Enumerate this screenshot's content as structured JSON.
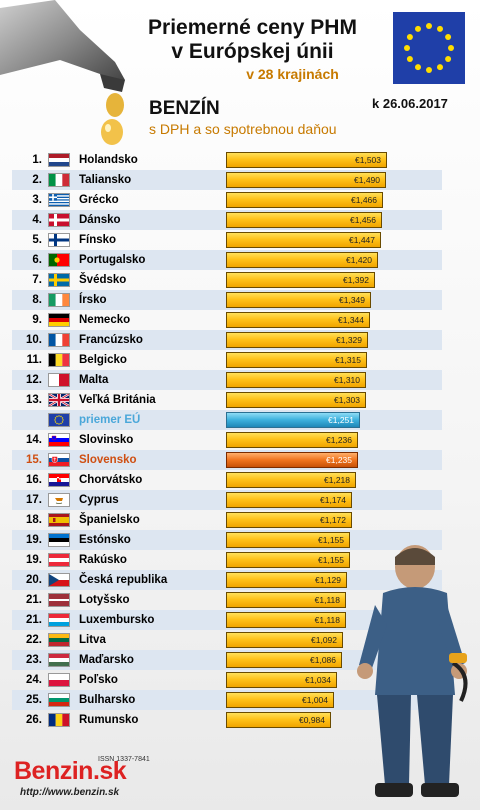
{
  "header": {
    "title_line1": "Priemerné ceny PHM",
    "title_line2": "v Európskej únii",
    "title_line3": "v 28 krajinách",
    "date": "k 26.06.2017",
    "heading": "BENZÍN",
    "subheading": "s DPH a so spotrebnou daňou"
  },
  "footer": {
    "issn": "ISSN 1337-7841",
    "logo": "Benzin.sk",
    "url": "http://www.benzin.sk"
  },
  "colors": {
    "bar": "#ffc21a",
    "eu_bar": "#3bb0dd",
    "highlight_bar": "#f0741e",
    "highlight_text": "#cf4f12",
    "eu_text": "#4aa7d9",
    "row_alt": "#dde6f1"
  },
  "chart_data": {
    "type": "bar",
    "orientation": "horizontal",
    "title": "Priemerné ceny PHM v Európskej únii",
    "unit": "€",
    "rows": [
      {
        "rank": "1.",
        "country": "Holandsko",
        "value": 1.503,
        "label": "€1,503",
        "flag": "nl"
      },
      {
        "rank": "2.",
        "country": "Taliansko",
        "value": 1.49,
        "label": "€1,490",
        "flag": "it"
      },
      {
        "rank": "3.",
        "country": "Grécko",
        "value": 1.466,
        "label": "€1,466",
        "flag": "gr"
      },
      {
        "rank": "4.",
        "country": "Dánsko",
        "value": 1.456,
        "label": "€1,456",
        "flag": "dk"
      },
      {
        "rank": "5.",
        "country": "Fínsko",
        "value": 1.447,
        "label": "€1,447",
        "flag": "fi"
      },
      {
        "rank": "6.",
        "country": "Portugalsko",
        "value": 1.42,
        "label": "€1,420",
        "flag": "pt"
      },
      {
        "rank": "7.",
        "country": "Švédsko",
        "value": 1.392,
        "label": "€1,392",
        "flag": "se"
      },
      {
        "rank": "8.",
        "country": "Írsko",
        "value": 1.349,
        "label": "€1,349",
        "flag": "ie"
      },
      {
        "rank": "9.",
        "country": "Nemecko",
        "value": 1.344,
        "label": "€1,344",
        "flag": "de"
      },
      {
        "rank": "10.",
        "country": "Francúzsko",
        "value": 1.329,
        "label": "€1,329",
        "flag": "fr"
      },
      {
        "rank": "11.",
        "country": "Belgicko",
        "value": 1.315,
        "label": "€1,315",
        "flag": "be"
      },
      {
        "rank": "12.",
        "country": "Malta",
        "value": 1.31,
        "label": "€1,310",
        "flag": "mt"
      },
      {
        "rank": "13.",
        "country": "Veľká Británia",
        "value": 1.303,
        "label": "€1,303",
        "flag": "gb"
      },
      {
        "rank": "",
        "country": "priemer EÚ",
        "value": 1.251,
        "label": "€1,251",
        "flag": "eu",
        "kind": "eu"
      },
      {
        "rank": "14.",
        "country": "Slovinsko",
        "value": 1.236,
        "label": "€1,236",
        "flag": "si"
      },
      {
        "rank": "15.",
        "country": "Slovensko",
        "value": 1.235,
        "label": "€1,235",
        "flag": "sk",
        "kind": "hl"
      },
      {
        "rank": "16.",
        "country": "Chorvátsko",
        "value": 1.218,
        "label": "€1,218",
        "flag": "hr"
      },
      {
        "rank": "17.",
        "country": "Cyprus",
        "value": 1.174,
        "label": "€1,174",
        "flag": "cy"
      },
      {
        "rank": "18.",
        "country": "Španielsko",
        "value": 1.172,
        "label": "€1,172",
        "flag": "es"
      },
      {
        "rank": "19.",
        "country": "Estónsko",
        "value": 1.155,
        "label": "€1,155",
        "flag": "ee"
      },
      {
        "rank": "19.",
        "country": "Rakúsko",
        "value": 1.155,
        "label": "€1,155",
        "flag": "at"
      },
      {
        "rank": "20.",
        "country": "Česká republika",
        "value": 1.129,
        "label": "€1,129",
        "flag": "cz"
      },
      {
        "rank": "21.",
        "country": "Lotyšsko",
        "value": 1.118,
        "label": "€1,118",
        "flag": "lv"
      },
      {
        "rank": "21.",
        "country": "Luxembursko",
        "value": 1.118,
        "label": "€1,118",
        "flag": "lu"
      },
      {
        "rank": "22.",
        "country": "Litva",
        "value": 1.092,
        "label": "€1,092",
        "flag": "lt"
      },
      {
        "rank": "23.",
        "country": "Maďarsko",
        "value": 1.086,
        "label": "€1,086",
        "flag": "hu"
      },
      {
        "rank": "24.",
        "country": "Poľsko",
        "value": 1.034,
        "label": "€1,034",
        "flag": "pl"
      },
      {
        "rank": "25.",
        "country": "Bulharsko",
        "value": 1.004,
        "label": "€1,004",
        "flag": "bg"
      },
      {
        "rank": "26.",
        "country": "Rumunsko",
        "value": 0.984,
        "label": "€0,984",
        "flag": "ro"
      }
    ]
  }
}
